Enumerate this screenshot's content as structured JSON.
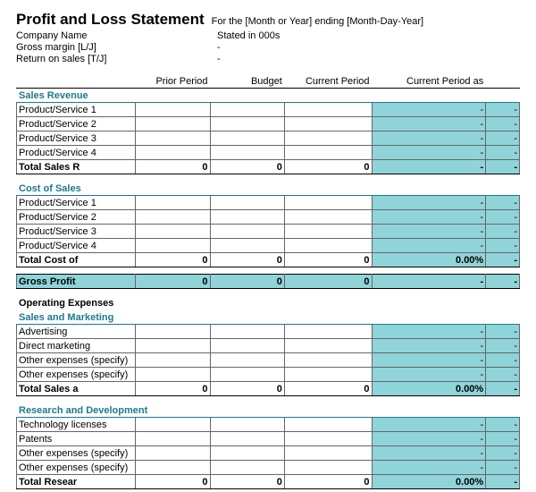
{
  "header": {
    "title": "Profit and Loss Statement",
    "subtitle": "For the [Month or Year] ending [Month-Day-Year]",
    "company_label": "Company Name",
    "company_val": "Stated in 000s",
    "gross_margin_label": "Gross margin  [L/J]",
    "gross_margin_val": "-",
    "return_sales_label": "Return on sales  [T/J]",
    "return_sales_val": "-"
  },
  "columns": {
    "c0": "",
    "c1": "Prior Period",
    "c2": "Budget",
    "c3": "Current Period",
    "c4": "Current Period as",
    "c5": ""
  },
  "sections": {
    "sales_revenue": {
      "title": "Sales Revenue",
      "rows": [
        "Product/Service 1",
        "Product/Service 2",
        "Product/Service 3",
        "Product/Service 4"
      ],
      "total_label": "Total Sales R",
      "totals": [
        "0",
        "0",
        "0",
        "-",
        "-"
      ]
    },
    "cost_of_sales": {
      "title": "Cost of Sales",
      "rows": [
        "Product/Service 1",
        "Product/Service 2",
        "Product/Service 3",
        "Product/Service 4"
      ],
      "total_label": "Total Cost of",
      "totals": [
        "0",
        "0",
        "0",
        "0.00%",
        "-"
      ]
    },
    "gross_profit": {
      "label": "Gross Profit",
      "vals": [
        "0",
        "0",
        "0",
        "-",
        "-"
      ]
    },
    "op_expenses": {
      "title": "Operating Expenses"
    },
    "sales_marketing": {
      "title": "Sales and Marketing",
      "rows": [
        "Advertising",
        "Direct marketing",
        "Other expenses (specify)",
        "Other expenses (specify)"
      ],
      "total_label": "Total Sales a",
      "totals": [
        "0",
        "0",
        "0",
        "0.00%",
        "-"
      ]
    },
    "rnd": {
      "title": "Research and Development",
      "rows": [
        "Technology licenses",
        "Patents",
        "Other expenses (specify)",
        "Other expenses (specify)"
      ],
      "total_label": "Total Resear",
      "totals": [
        "0",
        "0",
        "0",
        "0.00%",
        "-"
      ]
    }
  },
  "dash": "-"
}
